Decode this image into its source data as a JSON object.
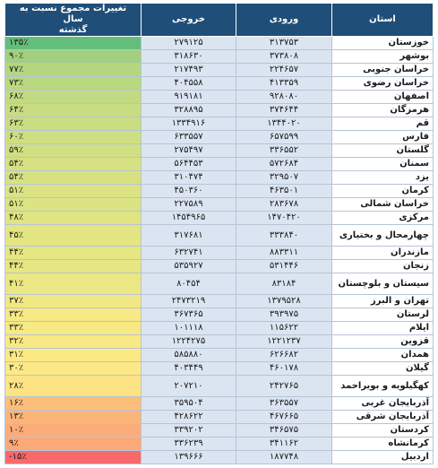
{
  "header": {
    "province": "استان",
    "incoming": "ورودی",
    "outgoing": "خروجی",
    "change_line1": "تغییرات مجموع نسبت به سال",
    "change_line2": "گذشته"
  },
  "rows": [
    {
      "province": "خوزستان",
      "incoming": "۳۱۳۷۵۳",
      "outgoing": "۲۷۹۱۲۵",
      "change": "۱۳۵٪",
      "color": "#63be7b",
      "tall": false
    },
    {
      "province": "بوشهر",
      "incoming": "۳۷۳۸۰۸",
      "outgoing": "۳۱۸۶۳۰",
      "change": "۹۰٪",
      "color": "#a2d07f",
      "tall": false
    },
    {
      "province": "خراسان جنوبی",
      "incoming": "۲۲۴۶۵۷",
      "outgoing": "۲۱۷۴۹۳",
      "change": "۷۷٪",
      "color": "#b5d680",
      "tall": false
    },
    {
      "province": "خراسان رضوی",
      "incoming": "۴۱۳۳۵۹",
      "outgoing": "۴۰۴۵۵۸",
      "change": "۷۳٪",
      "color": "#bad880",
      "tall": false
    },
    {
      "province": "اصفهان",
      "incoming": "۹۲۸۰۸۰",
      "outgoing": "۹۱۹۱۸۱",
      "change": "۶۸٪",
      "color": "#c2da81",
      "tall": false
    },
    {
      "province": "هرمزگان",
      "incoming": "۳۷۴۶۴۴",
      "outgoing": "۳۲۸۸۹۵",
      "change": "۶۴٪",
      "color": "#c8dc81",
      "tall": false
    },
    {
      "province": "قم",
      "incoming": "۱۳۴۴۰۲۰",
      "outgoing": "۱۳۳۴۹۱۶",
      "change": "۶۳٪",
      "color": "#cadd82",
      "tall": false
    },
    {
      "province": "فارس",
      "incoming": "۶۵۷۵۹۹",
      "outgoing": "۶۳۳۵۵۷",
      "change": "۶۰٪",
      "color": "#cede82",
      "tall": false
    },
    {
      "province": "گلستان",
      "incoming": "۳۳۶۵۵۲",
      "outgoing": "۲۷۵۴۹۷",
      "change": "۵۹٪",
      "color": "#d0df82",
      "tall": false
    },
    {
      "province": "سمنان",
      "incoming": "۵۷۲۶۸۴",
      "outgoing": "۵۶۴۴۵۳",
      "change": "۵۴٪",
      "color": "#d7e182",
      "tall": false
    },
    {
      "province": "یزد",
      "incoming": "۳۲۹۵۰۷",
      "outgoing": "۳۱۰۴۷۴",
      "change": "۵۴٪",
      "color": "#d7e182",
      "tall": false
    },
    {
      "province": "کرمان",
      "incoming": "۴۶۳۵۰۱",
      "outgoing": "۴۵۰۳۶۰",
      "change": "۵۱٪",
      "color": "#dbe383",
      "tall": false
    },
    {
      "province": "خراسان شمالی",
      "incoming": "۲۸۳۶۷۸",
      "outgoing": "۲۲۷۵۸۹",
      "change": "۵۱٪",
      "color": "#dbe383",
      "tall": false
    },
    {
      "province": "مرکزی",
      "incoming": "۱۴۷۰۴۲۰",
      "outgoing": "۱۴۵۴۹۶۵",
      "change": "۴۸٪",
      "color": "#e0e483",
      "tall": false
    },
    {
      "province": "چهارمحال و بختیاری",
      "incoming": "۳۳۳۸۴۰",
      "outgoing": "۳۱۷۶۸۱",
      "change": "۴۵٪",
      "color": "#e4e583",
      "tall": true
    },
    {
      "province": "مازندران",
      "incoming": "۸۸۳۳۱۱",
      "outgoing": "۶۳۲۷۴۱",
      "change": "۴۴٪",
      "color": "#e6e683",
      "tall": false
    },
    {
      "province": "زنجان",
      "incoming": "۵۳۱۴۴۶",
      "outgoing": "۵۳۵۹۲۷",
      "change": "۴۴٪",
      "color": "#e6e683",
      "tall": false
    },
    {
      "province": "سیستان و بلوچستان",
      "incoming": "۸۳۱۸۴",
      "outgoing": "۸۰۴۵۴",
      "change": "۴۱٪",
      "color": "#ebe784",
      "tall": true
    },
    {
      "province": "تهران و البرز",
      "incoming": "۱۳۷۹۵۲۸",
      "outgoing": "۲۴۷۳۲۱۹",
      "change": "۳۷٪",
      "color": "#f1e884",
      "tall": false
    },
    {
      "province": "لرستان",
      "incoming": "۳۹۳۹۷۵",
      "outgoing": "۳۶۷۳۶۵",
      "change": "۳۳٪",
      "color": "#f7e984",
      "tall": false
    },
    {
      "province": "ایلام",
      "incoming": "۱۱۵۶۲۲",
      "outgoing": "۱۰۱۱۱۸",
      "change": "۳۳٪",
      "color": "#f7e984",
      "tall": false
    },
    {
      "province": "قزوین",
      "incoming": "۱۲۲۱۲۳۷",
      "outgoing": "۱۲۲۴۲۷۵",
      "change": "۳۲٪",
      "color": "#f9e984",
      "tall": false
    },
    {
      "province": "همدان",
      "incoming": "۶۲۶۶۸۲",
      "outgoing": "۵۸۵۸۸۰",
      "change": "۳۱٪",
      "color": "#fbea84",
      "tall": false
    },
    {
      "province": "گیلان",
      "incoming": "۴۶۰۱۷۸",
      "outgoing": "۴۰۳۴۴۹",
      "change": "۳۰٪",
      "color": "#fde984",
      "tall": false
    },
    {
      "province": "کهگیلویه و بویراحمد",
      "incoming": "۲۴۲۷۶۵",
      "outgoing": "۲۰۷۲۱۰",
      "change": "۲۸٪",
      "color": "#fde383",
      "tall": true
    },
    {
      "province": "آذربایجان غربی",
      "incoming": "۳۶۳۵۵۷",
      "outgoing": "۳۵۹۵۰۴",
      "change": "۱۶٪",
      "color": "#fcbe7b",
      "tall": false
    },
    {
      "province": "آذربایجان شرقی",
      "incoming": "۴۶۷۶۶۵",
      "outgoing": "۴۲۸۶۲۲",
      "change": "۱۳٪",
      "color": "#fbb57a",
      "tall": false
    },
    {
      "province": "کردستان",
      "incoming": "۳۴۶۵۷۵",
      "outgoing": "۳۳۹۲۰۲",
      "change": "۱۰٪",
      "color": "#fbac78",
      "tall": false
    },
    {
      "province": "کرمانشاه",
      "incoming": "۳۴۱۱۶۲",
      "outgoing": "۳۳۶۲۳۹",
      "change": "۹٪",
      "color": "#fba977",
      "tall": false
    },
    {
      "province": "اردبیل",
      "incoming": "۱۸۷۷۴۸",
      "outgoing": "۱۳۹۶۶۶",
      "change": "-۱۵٪",
      "color": "#f8696b",
      "tall": false
    }
  ]
}
